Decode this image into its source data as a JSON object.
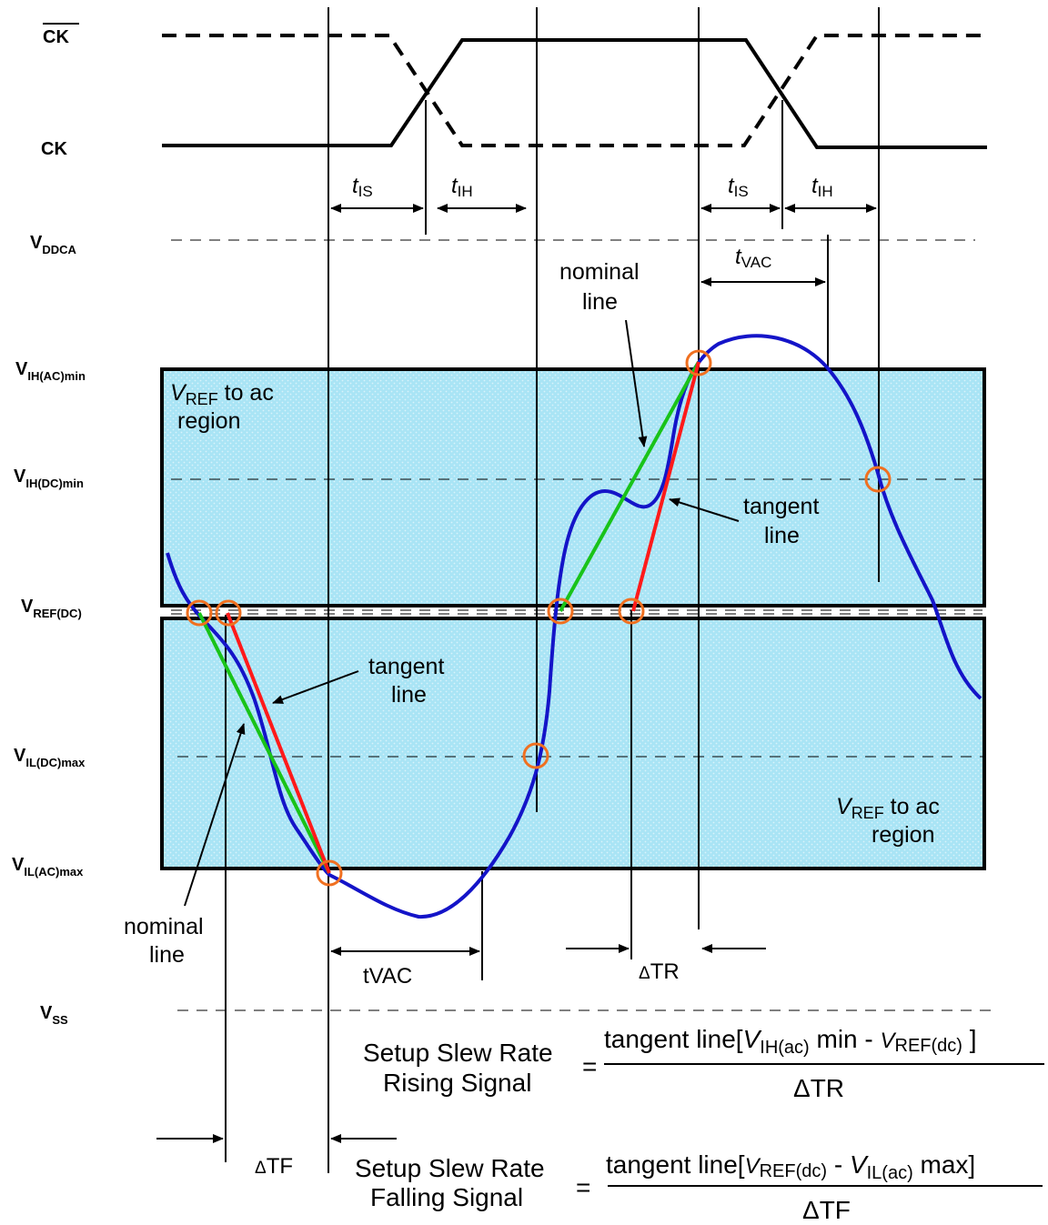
{
  "colors": {
    "region_fill": "#a9e4f5",
    "signal": "#1414c8",
    "tangent": "#ff1a1a",
    "nominal": "#19c319",
    "marker": "#f07020"
  },
  "labels": {
    "ck_bar": "CK",
    "ck": "CK",
    "vddca": {
      "main": "V",
      "sub": "DDCA"
    },
    "vih_ac": {
      "main": "V",
      "sub": "IH(AC)min"
    },
    "vih_dc": {
      "main": "V",
      "sub": "IH(DC)min"
    },
    "vref_dc": {
      "main": "V",
      "sub": "REF(DC)"
    },
    "vil_dc": {
      "main": "V",
      "sub": "IL(DC)max"
    },
    "vil_ac": {
      "main": "V",
      "sub": "IL(AC)max"
    },
    "vss": {
      "main": "V",
      "sub": "SS"
    }
  },
  "timing": {
    "t": "t",
    "is": "IS",
    "ih": "IH",
    "vac": "VAC",
    "tvac_bottom": "tVAC",
    "delta": "Δ",
    "tr": "TR",
    "tf": "TF"
  },
  "annotations": {
    "region_v": "V",
    "region_ref": "REF",
    "region_rest": " to ac",
    "region_line2": "region",
    "nominal_1": "nominal",
    "nominal_2": "line",
    "tangent_1": "tangent",
    "tangent_2": "line"
  },
  "equations": {
    "rise_label_1": "Setup Slew Rate",
    "rise_label_2": "Rising Signal",
    "equals": "=",
    "rise_num_1": "tangent line[",
    "rise_num_v": "V",
    "rise_num_ihac": "IH(ac)",
    "rise_num_2": " min - ",
    "rise_num_v2": "V",
    "rise_num_refdc": "REF(dc)",
    "rise_num_3": " ]",
    "rise_den": "ΔTR",
    "fall_label_1": "Setup Slew Rate",
    "fall_label_2": "Falling Signal",
    "fall_num_1": "tangent line[",
    "fall_num_v": "V",
    "fall_num_refdc": "REF(dc)",
    "fall_num_2": "  - ",
    "fall_num_v2": "V",
    "fall_num_ilac": "IL(ac)",
    "fall_num_3": " max]",
    "fall_den": "ΔTF"
  }
}
